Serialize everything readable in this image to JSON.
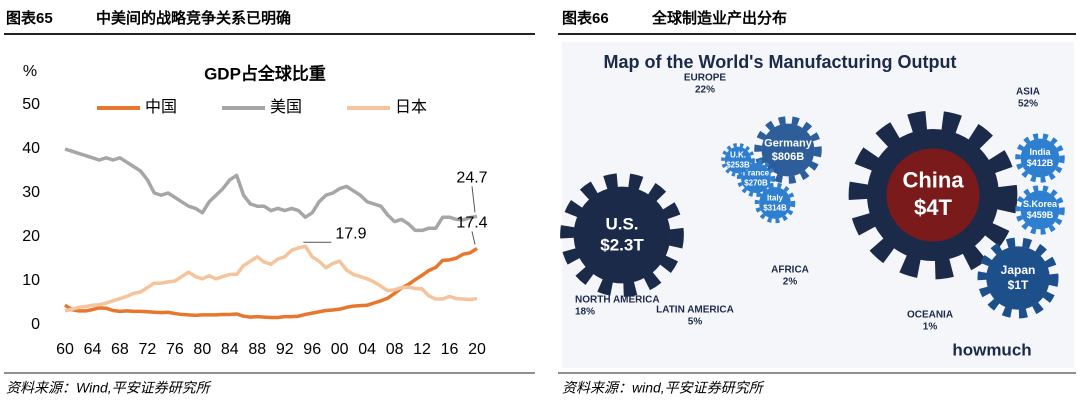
{
  "panels": [
    {
      "figure_number": "图表65",
      "caption": "中美间的战略竞争关系已明确",
      "source": "资料来源：Wind,平安证券研究所"
    },
    {
      "figure_number": "图表66",
      "caption": "全球制造业产出分布",
      "source": "资料来源：wind,平安证券研究所"
    }
  ],
  "chart_data": {
    "type": "line",
    "title": "GDP占全球比重",
    "ylabel": "%",
    "x": [
      1960,
      1961,
      1962,
      1963,
      1964,
      1965,
      1966,
      1967,
      1968,
      1969,
      1970,
      1971,
      1972,
      1973,
      1974,
      1975,
      1976,
      1977,
      1978,
      1979,
      1980,
      1981,
      1982,
      1983,
      1984,
      1985,
      1986,
      1987,
      1988,
      1989,
      1990,
      1991,
      1992,
      1993,
      1994,
      1995,
      1996,
      1997,
      1998,
      1999,
      2000,
      2001,
      2002,
      2003,
      2004,
      2005,
      2006,
      2007,
      2008,
      2009,
      2010,
      2011,
      2012,
      2013,
      2014,
      2015,
      2016,
      2017,
      2018,
      2019,
      2020
    ],
    "series": [
      {
        "name": "中国",
        "color": "#e8772e",
        "values": [
          4.5,
          3.5,
          3.2,
          3.2,
          3.5,
          3.9,
          3.8,
          3.3,
          3.1,
          3.2,
          3.1,
          3.1,
          3.0,
          2.9,
          2.8,
          2.9,
          2.6,
          2.4,
          2.3,
          2.2,
          2.3,
          2.3,
          2.3,
          2.4,
          2.4,
          2.5,
          2.0,
          1.8,
          1.9,
          1.8,
          1.7,
          1.7,
          1.9,
          1.9,
          2.0,
          2.4,
          2.7,
          3.0,
          3.3,
          3.4,
          3.6,
          4.0,
          4.3,
          4.4,
          4.5,
          5.0,
          5.5,
          6.1,
          7.2,
          8.4,
          9.2,
          10.3,
          11.3,
          12.4,
          13.1,
          14.7,
          14.8,
          15.2,
          16.1,
          16.4,
          17.4
        ]
      },
      {
        "name": "美国",
        "color": "#a6a6a6",
        "values": [
          40,
          39.5,
          39,
          38.5,
          38,
          37.5,
          38,
          37.5,
          38,
          37,
          36,
          35,
          33,
          30,
          29.5,
          30,
          29,
          28,
          27,
          26.5,
          25.5,
          28,
          29.5,
          31,
          33,
          34,
          29.5,
          27.5,
          27,
          27,
          26,
          26.5,
          26,
          26.5,
          26,
          24.5,
          25.5,
          28,
          29.5,
          30,
          31,
          31.5,
          30.5,
          29.5,
          28,
          27.5,
          27,
          25,
          23.5,
          24,
          23,
          21.5,
          21.5,
          22,
          22,
          24.5,
          24.5,
          24,
          23.9,
          24.4,
          24.7
        ]
      },
      {
        "name": "日本",
        "color": "#f5c49c",
        "values": [
          3.2,
          3.6,
          4.0,
          4.2,
          4.5,
          4.6,
          5.0,
          5.5,
          6.0,
          6.5,
          7.2,
          7.5,
          8.5,
          9.5,
          9.5,
          9.8,
          10,
          11,
          12,
          11,
          10.5,
          11.2,
          10.5,
          11,
          11.5,
          11.5,
          13.5,
          14.5,
          15.5,
          14.3,
          13.8,
          15,
          15.5,
          17,
          17.5,
          17.9,
          15.5,
          14.5,
          13,
          14,
          14.5,
          12.5,
          11.5,
          11,
          10.5,
          9.8,
          8.8,
          7.8,
          8,
          8.5,
          8.6,
          8.3,
          8.2,
          6.6,
          5.9,
          5.9,
          6.5,
          6.0,
          5.9,
          5.8,
          6.0
        ]
      }
    ],
    "annotations": [
      {
        "x": 2020,
        "y": 24.7
      },
      {
        "x": 2020,
        "y": 17.4
      },
      {
        "x": 1995,
        "y": 17.9
      }
    ],
    "xlim": [
      1960,
      2020
    ],
    "xticks": [
      {
        "value": 1960,
        "label": "60"
      },
      {
        "value": 1964,
        "label": "64"
      },
      {
        "value": 1968,
        "label": "68"
      },
      {
        "value": 1972,
        "label": "72"
      },
      {
        "value": 1976,
        "label": "76"
      },
      {
        "value": 1980,
        "label": "80"
      },
      {
        "value": 1984,
        "label": "84"
      },
      {
        "value": 1988,
        "label": "88"
      },
      {
        "value": 1992,
        "label": "92"
      },
      {
        "value": 1996,
        "label": "96"
      },
      {
        "value": 2000,
        "label": "00"
      },
      {
        "value": 2004,
        "label": "04"
      },
      {
        "value": 2008,
        "label": "08"
      },
      {
        "value": 2012,
        "label": "12"
      },
      {
        "value": 2016,
        "label": "16"
      },
      {
        "value": 2020,
        "label": "20"
      }
    ],
    "ylim": [
      0,
      50
    ],
    "yticks": [
      0,
      10,
      20,
      30,
      40,
      50
    ],
    "legend": "top",
    "grid": false
  },
  "infographic": {
    "title": "Map of the World's Manufacturing Output",
    "regions": [
      {
        "name": "EUROPE",
        "share": "22%"
      },
      {
        "name": "ASIA",
        "share": "52%"
      },
      {
        "name": "NORTH AMERICA",
        "share": "18%"
      },
      {
        "name": "AFRICA",
        "share": "2%"
      },
      {
        "name": "LATIN AMERICA",
        "share": "5%"
      },
      {
        "name": "OCEANIA",
        "share": "1%"
      }
    ],
    "bubbles": [
      {
        "name": "China",
        "value": "$4T"
      },
      {
        "name": "U.S.",
        "value": "$2.3T"
      },
      {
        "name": "Japan",
        "value": "$1T"
      },
      {
        "name": "Germany",
        "value": "$806B"
      },
      {
        "name": "S.Korea",
        "value": "$459B"
      },
      {
        "name": "India",
        "value": "$412B"
      },
      {
        "name": "Italy",
        "value": "$314B"
      },
      {
        "name": "France",
        "value": "$270B"
      },
      {
        "name": "U.K.",
        "value": "$253B"
      }
    ],
    "brand": "howmuch"
  }
}
